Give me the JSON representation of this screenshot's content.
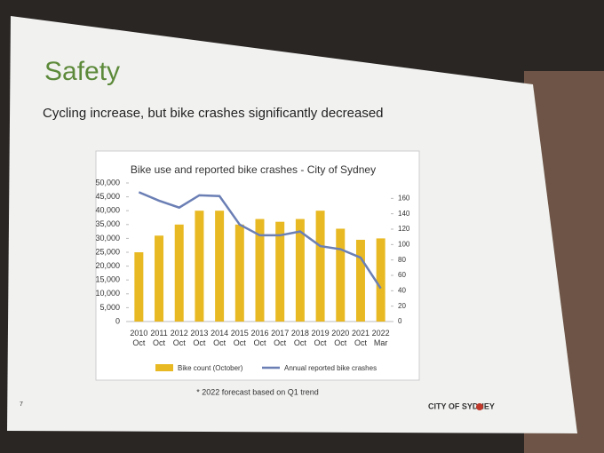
{
  "slide": {
    "heading": "Safety",
    "subheading": "Cycling increase, but bike crashes significantly decreased",
    "footnote": "* 2022 forecast based on Q1 trend",
    "logo": "CITY OF SYDNEY",
    "page_number": "7"
  },
  "chart_data": {
    "type": "bar_line",
    "title": "Bike use and reported bike crashes - City of Sydney",
    "categories": [
      "2010 Oct",
      "2011 Oct",
      "2012 Oct",
      "2013 Oct",
      "2014 Oct",
      "2015 Oct",
      "2016 Oct",
      "2017 Oct",
      "2018 Oct",
      "2019 Oct",
      "2020 Oct",
      "2021 Oct",
      "2022 Mar"
    ],
    "series": [
      {
        "name": "Bike count (October)",
        "color": "#e8b923",
        "kind": "bar",
        "values": [
          25000,
          31000,
          35000,
          40000,
          40000,
          35000,
          37000,
          36000,
          37000,
          40000,
          33500,
          29500,
          30000
        ]
      },
      {
        "name": "Annual reported bike crashes",
        "color": "#6b7fb5",
        "kind": "line",
        "axis": "y2",
        "values": [
          168,
          157,
          148,
          164,
          163,
          126,
          112,
          112,
          117,
          98,
          94,
          83,
          43
        ]
      }
    ],
    "ylim": [
      0,
      50000
    ],
    "yticks": [
      0,
      {
        "value": 5000,
        "label": "5,000"
      },
      {
        "value": 10000,
        "label": "10,000"
      },
      {
        "value": 15000,
        "label": "15,000"
      },
      {
        "value": 20000,
        "label": "20,000"
      },
      {
        "value": 25000,
        "label": "25,000"
      },
      {
        "value": 30000,
        "label": "30,000"
      },
      {
        "value": 35000,
        "label": "35,000"
      },
      {
        "value": 40000,
        "label": "40,000"
      },
      {
        "value": 45000,
        "label": "45,000"
      },
      {
        "value": 50000,
        "label": "50,000"
      }
    ],
    "y2lim": [
      0,
      180
    ],
    "y2ticks": [
      0,
      20,
      40,
      60,
      80,
      100,
      120,
      140,
      160
    ]
  }
}
